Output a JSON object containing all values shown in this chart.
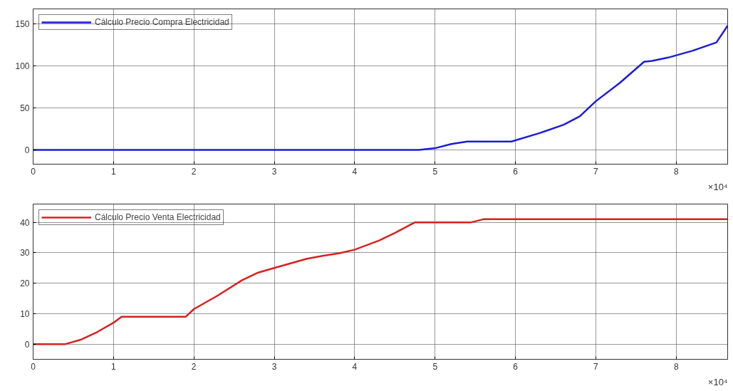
{
  "chart_data": [
    {
      "type": "line",
      "xlim": [
        0,
        8.64
      ],
      "ylim": [
        -17,
        168
      ],
      "xticks": [
        0,
        1,
        2,
        3,
        4,
        5,
        6,
        7,
        8
      ],
      "yticks": [
        0,
        50,
        100,
        150
      ],
      "grid": true,
      "legend": "top left",
      "annotations": [
        "×10⁴"
      ],
      "series": [
        {
          "name": "Cálculo Precio Compra Electricidad",
          "color": "#1c1cd8",
          "x": [
            0,
            1,
            2,
            3,
            4,
            4.8,
            5.0,
            5.2,
            5.4,
            5.95,
            6.3,
            6.6,
            6.8,
            7.0,
            7.3,
            7.6,
            7.7,
            7.9,
            8.2,
            8.5,
            8.64
          ],
          "values": [
            0,
            0,
            0,
            0,
            0,
            0,
            2,
            7,
            10,
            10,
            20,
            30,
            40,
            58,
            80,
            105,
            106,
            110,
            118,
            128,
            148
          ]
        }
      ]
    },
    {
      "type": "line",
      "xlim": [
        0,
        8.64
      ],
      "ylim": [
        -5,
        46
      ],
      "xticks": [
        0,
        1,
        2,
        3,
        4,
        5,
        6,
        7,
        8
      ],
      "yticks": [
        0,
        10,
        20,
        30,
        40
      ],
      "grid": true,
      "legend": "top left",
      "annotations": [
        "×10⁴"
      ],
      "series": [
        {
          "name": "Cálculo Precio Venta Electricidad",
          "color": "#d82020",
          "x": [
            0,
            0.4,
            0.6,
            0.8,
            1.0,
            1.1,
            1.9,
            2.0,
            2.3,
            2.6,
            2.8,
            3.0,
            3.4,
            3.6,
            3.8,
            4.0,
            4.3,
            4.5,
            4.75,
            5.45,
            5.6,
            8.64
          ],
          "values": [
            0,
            0,
            1.5,
            4,
            7,
            9,
            9,
            11.5,
            16,
            21,
            23.5,
            25,
            28,
            29,
            29.8,
            31,
            34,
            36.5,
            40,
            40,
            41,
            41
          ]
        }
      ]
    }
  ]
}
